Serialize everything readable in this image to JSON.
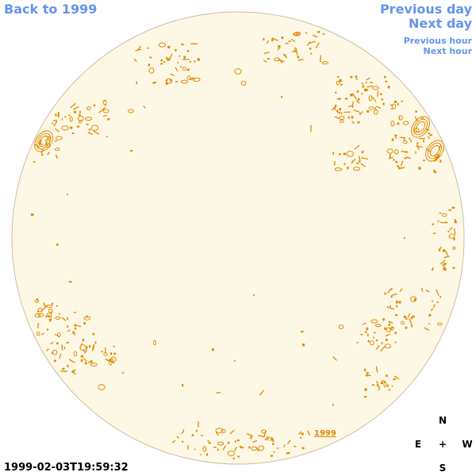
{
  "nav": {
    "back_label": "Back to 1999",
    "prev_day_label": "Previous day",
    "next_day_label": "Next day",
    "prev_hour_label": "Previous hour",
    "next_hour_label": "Next hour"
  },
  "map": {
    "disk_fill": "#fdf8e6",
    "disk_stroke": "#c9bfa6",
    "feature_color": "#e08a00",
    "marker_label": "1999"
  },
  "timestamp": "1999-02-03T19:59:32",
  "compass": {
    "north": "N",
    "south": "S",
    "east": "E",
    "west": "W",
    "center": "+"
  }
}
